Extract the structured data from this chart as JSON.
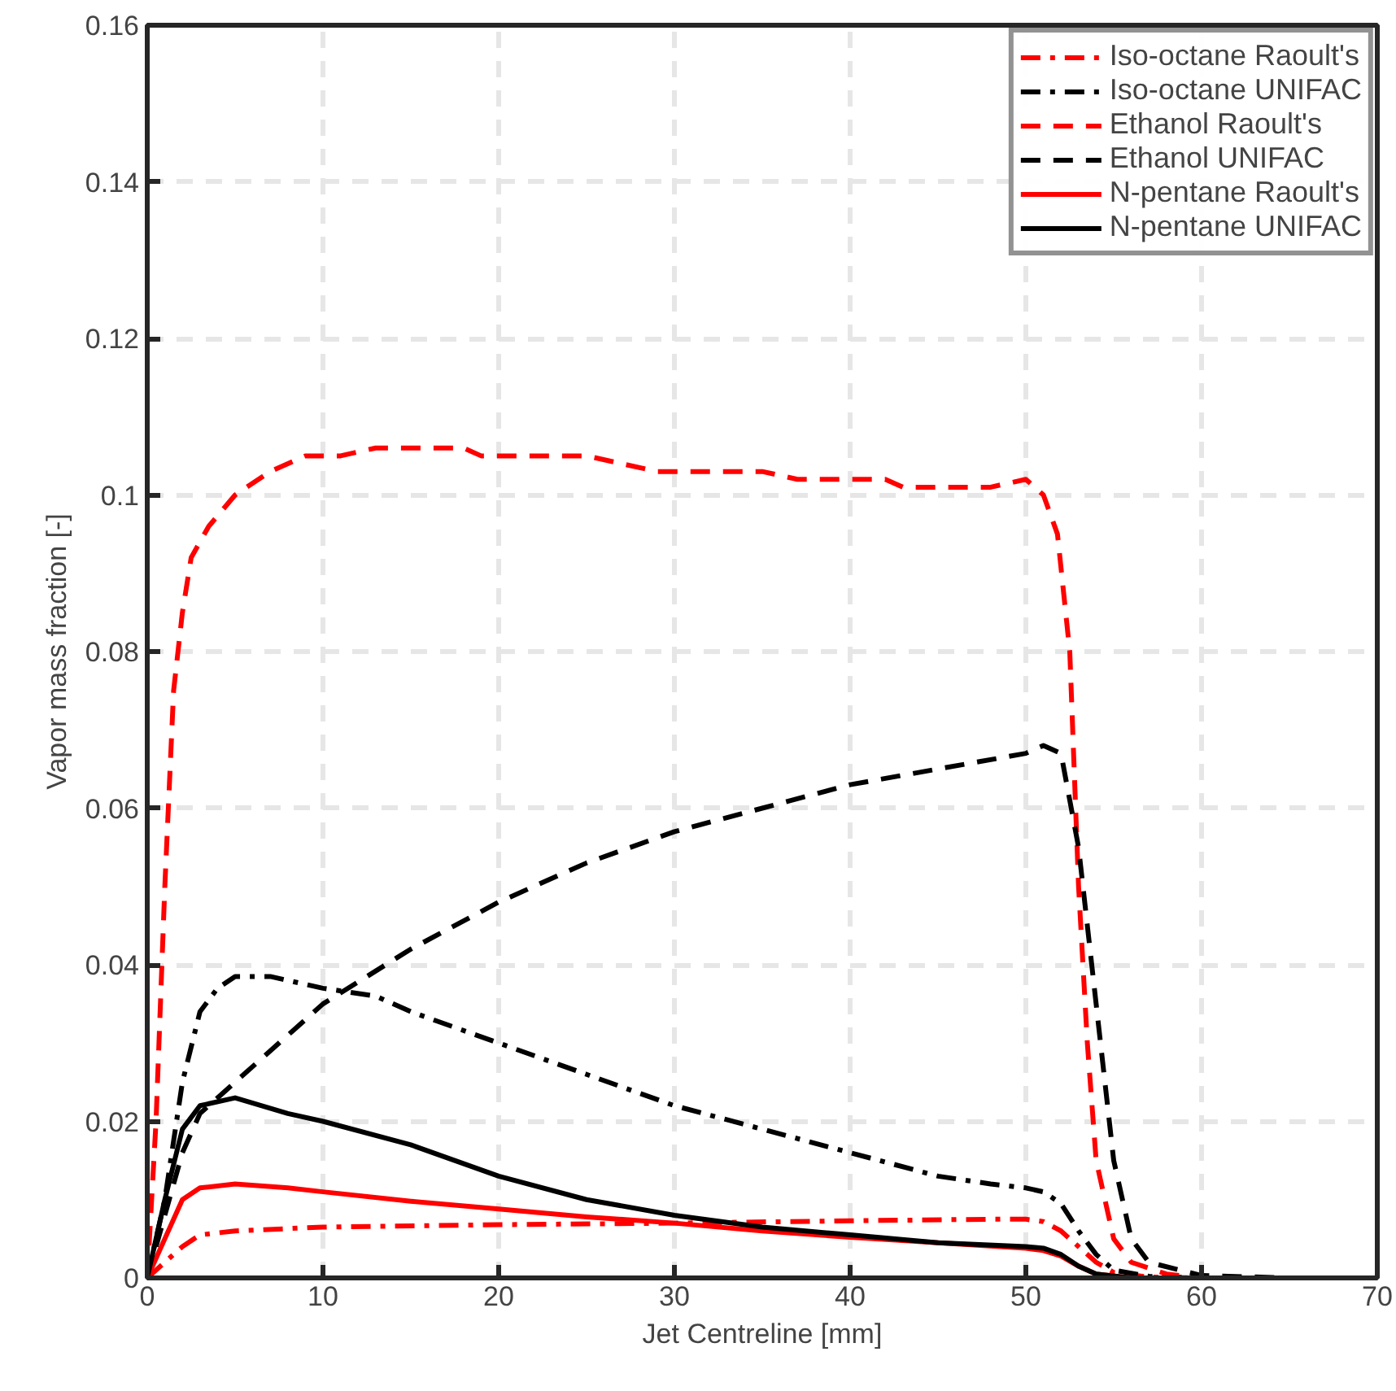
{
  "chart_data": {
    "type": "line",
    "xlabel": "Jet Centreline [mm]",
    "ylabel": "Vapor mass fraction [-]",
    "xlim": [
      0,
      70
    ],
    "xticks": [
      0,
      10,
      20,
      30,
      40,
      50,
      60,
      70
    ],
    "ylim": [
      0,
      0.16
    ],
    "yticks": [
      0,
      0.02,
      0.04,
      0.06,
      0.08,
      0.1,
      0.12,
      0.14,
      0.16
    ],
    "grid": true,
    "legend": "top right",
    "marker": "none",
    "series": [
      {
        "name": "Iso-octane Raoult's",
        "color": "#ff0000",
        "line_style": "dashdot",
        "x": [
          0,
          1,
          2,
          3,
          5,
          10,
          20,
          30,
          40,
          48,
          50,
          51,
          52,
          53,
          54,
          55,
          57,
          60,
          65
        ],
        "values": [
          0,
          0.002,
          0.004,
          0.0055,
          0.006,
          0.0065,
          0.0068,
          0.007,
          0.0073,
          0.0075,
          0.0075,
          0.0072,
          0.006,
          0.004,
          0.002,
          0.0007,
          0.0001,
          0,
          0
        ]
      },
      {
        "name": "Iso-octane UNIFAC",
        "color": "#000000",
        "line_style": "dashdot",
        "x": [
          0,
          1,
          2,
          3,
          4,
          5,
          7,
          10,
          13,
          15,
          20,
          25,
          30,
          35,
          40,
          45,
          48,
          50,
          51,
          52,
          53,
          54,
          55,
          57,
          60,
          65
        ],
        "values": [
          0,
          0.01,
          0.025,
          0.034,
          0.037,
          0.0385,
          0.0385,
          0.037,
          0.036,
          0.034,
          0.03,
          0.026,
          0.022,
          0.019,
          0.016,
          0.013,
          0.012,
          0.0115,
          0.011,
          0.0095,
          0.006,
          0.003,
          0.001,
          0.0002,
          0,
          0
        ]
      },
      {
        "name": "Ethanol Raoult's",
        "color": "#ff0000",
        "line_style": "dashed",
        "x": [
          0,
          0.5,
          1,
          1.5,
          2,
          2.5,
          3.5,
          5,
          7,
          9,
          11,
          13,
          18,
          19,
          25,
          29,
          35,
          37,
          42,
          43,
          48,
          50,
          51,
          51.8,
          52.5,
          53,
          53.5,
          54,
          55,
          56,
          58,
          60,
          65
        ],
        "values": [
          0,
          0.02,
          0.05,
          0.075,
          0.085,
          0.092,
          0.096,
          0.1,
          0.103,
          0.105,
          0.105,
          0.106,
          0.106,
          0.105,
          0.105,
          0.103,
          0.103,
          0.102,
          0.102,
          0.101,
          0.101,
          0.102,
          0.1,
          0.095,
          0.08,
          0.05,
          0.03,
          0.015,
          0.005,
          0.002,
          0.0005,
          0,
          0
        ]
      },
      {
        "name": "Ethanol UNIFAC",
        "color": "#000000",
        "line_style": "dashed",
        "x": [
          0,
          1,
          2,
          3,
          5,
          8,
          10,
          15,
          20,
          25,
          30,
          35,
          40,
          45,
          50,
          51,
          52,
          53,
          54,
          55,
          56,
          57,
          60,
          65
        ],
        "values": [
          0,
          0.008,
          0.016,
          0.021,
          0.025,
          0.031,
          0.035,
          0.042,
          0.048,
          0.053,
          0.057,
          0.06,
          0.063,
          0.065,
          0.067,
          0.068,
          0.067,
          0.055,
          0.035,
          0.015,
          0.005,
          0.002,
          0.0003,
          0
        ]
      },
      {
        "name": "N-pentane Raoult's",
        "color": "#ff0000",
        "line_style": "solid",
        "x": [
          0,
          1,
          2,
          3,
          5,
          8,
          10,
          15,
          20,
          25,
          30,
          35,
          40,
          45,
          50,
          51,
          52,
          53,
          54,
          56,
          65
        ],
        "values": [
          0,
          0.005,
          0.01,
          0.0115,
          0.012,
          0.0115,
          0.011,
          0.0098,
          0.0088,
          0.0078,
          0.007,
          0.006,
          0.0052,
          0.0045,
          0.0038,
          0.0035,
          0.0028,
          0.0015,
          0.0005,
          0,
          0
        ]
      },
      {
        "name": "N-pentane UNIFAC",
        "color": "#000000",
        "line_style": "solid",
        "x": [
          0,
          1,
          2,
          3,
          5,
          8,
          10,
          15,
          20,
          25,
          30,
          35,
          40,
          45,
          50,
          51,
          52,
          53,
          54,
          56,
          65
        ],
        "values": [
          0,
          0.01,
          0.019,
          0.022,
          0.023,
          0.021,
          0.02,
          0.017,
          0.013,
          0.01,
          0.008,
          0.0065,
          0.0055,
          0.0045,
          0.004,
          0.0038,
          0.003,
          0.0015,
          0.0005,
          0,
          0
        ]
      }
    ]
  }
}
